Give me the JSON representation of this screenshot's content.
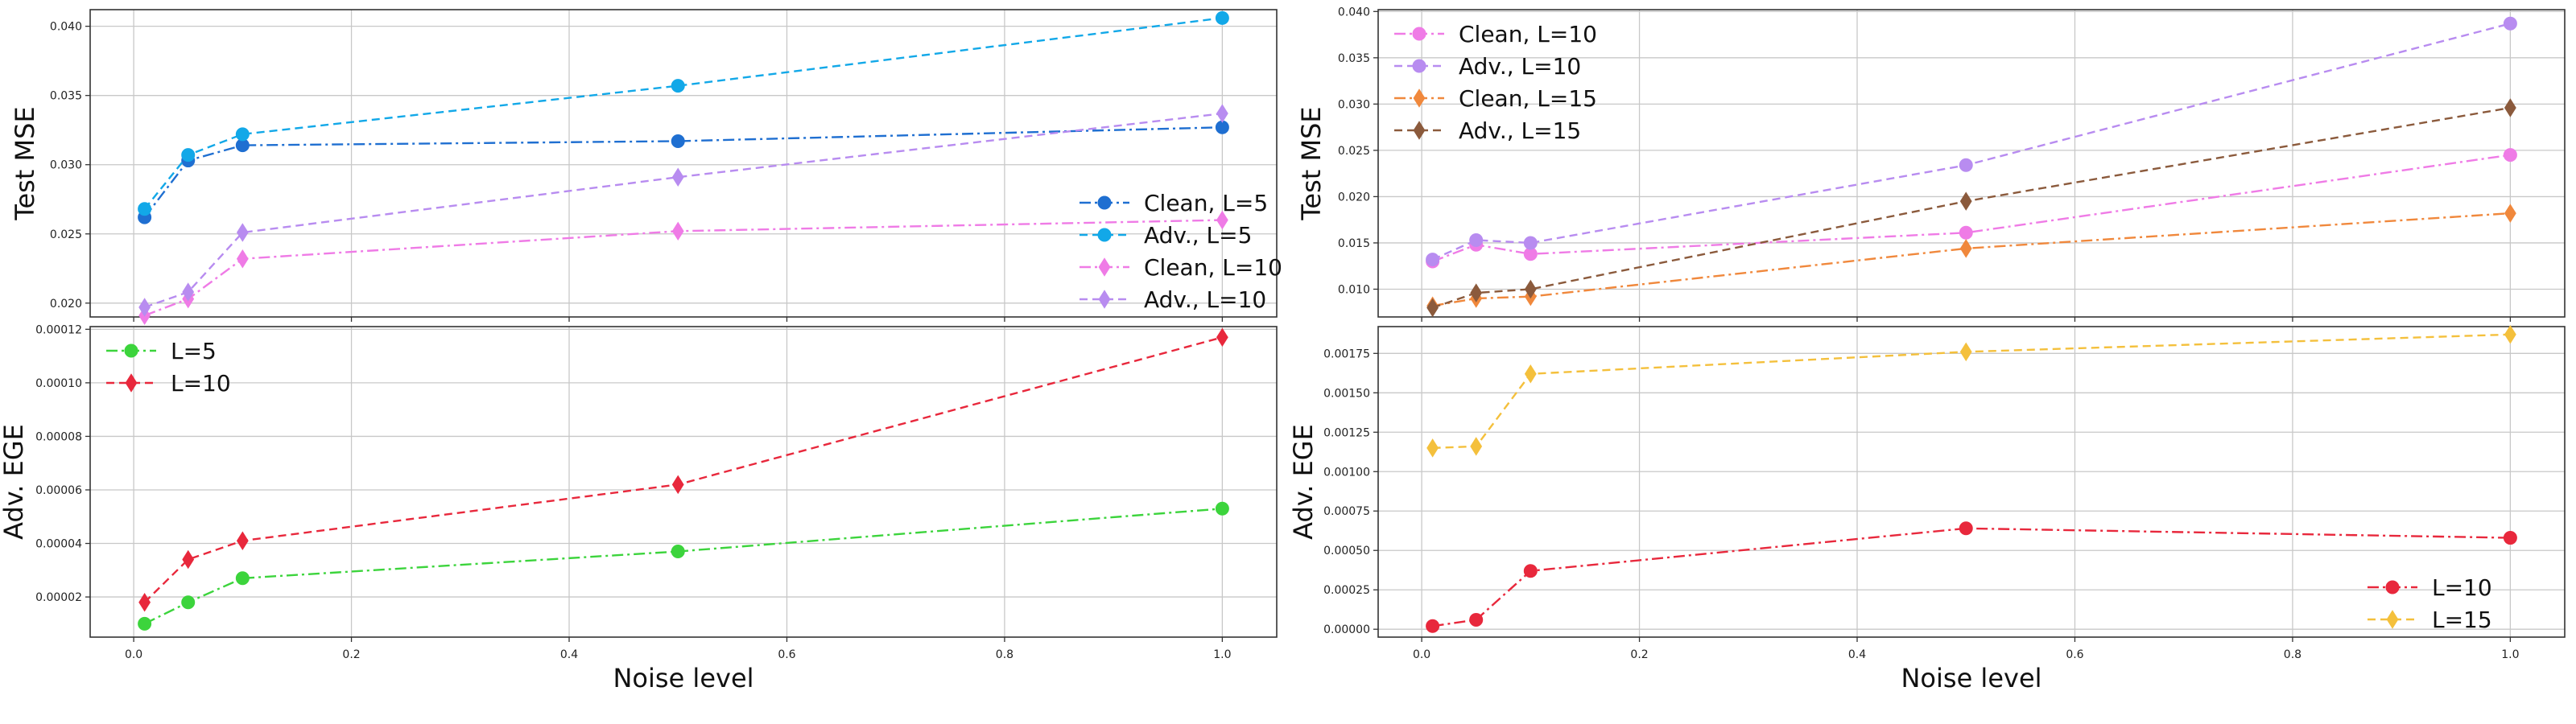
{
  "chart_data": [
    {
      "type": "line",
      "panel": "top-left",
      "ylabel": "Test MSE",
      "xlabel": "",
      "xlim": [
        -0.04,
        1.05
      ],
      "ylim": [
        0.019,
        0.0412
      ],
      "xticks": [],
      "yticks": [
        0.02,
        0.025,
        0.03,
        0.035,
        0.04
      ],
      "ytick_labels": [
        "0.020",
        "0.025",
        "0.030",
        "0.035",
        "0.040"
      ],
      "grid": true,
      "legend_position": "lower-right",
      "x": [
        0.01,
        0.05,
        0.1,
        0.5,
        1.0
      ],
      "series": [
        {
          "name": "Clean, L=5",
          "color": "#1f6fd1",
          "marker": "circle",
          "dash": "dashdot",
          "values": [
            0.0262,
            0.0303,
            0.0314,
            0.0317,
            0.0327
          ]
        },
        {
          "name": "Adv., L=5",
          "color": "#12a8e8",
          "marker": "circle",
          "dash": "dashed",
          "values": [
            0.0268,
            0.0307,
            0.0322,
            0.0357,
            0.0406
          ]
        },
        {
          "name": "Clean, L=10",
          "color": "#ef7be6",
          "marker": "diamond",
          "dash": "dashdot",
          "values": [
            0.0191,
            0.0203,
            0.0232,
            0.0252,
            0.026
          ]
        },
        {
          "name": "Adv., L=10",
          "color": "#b88cf0",
          "marker": "diamond",
          "dash": "dashed",
          "values": [
            0.0197,
            0.0208,
            0.0251,
            0.0291,
            0.0337
          ]
        }
      ]
    },
    {
      "type": "line",
      "panel": "bottom-left",
      "ylabel": "Adv. EGE",
      "xlabel": "Noise level",
      "xlim": [
        -0.04,
        1.05
      ],
      "ylim": [
        5e-06,
        0.000121
      ],
      "xticks": [
        0.0,
        0.2,
        0.4,
        0.6,
        0.8,
        1.0
      ],
      "xtick_labels": [
        "0.0",
        "0.2",
        "0.4",
        "0.6",
        "0.8",
        "1.0"
      ],
      "yticks": [
        2e-05,
        4e-05,
        6e-05,
        8e-05,
        0.0001,
        0.00012
      ],
      "ytick_labels": [
        "0.00002",
        "0.00004",
        "0.00006",
        "0.00008",
        "0.00010",
        "0.00012"
      ],
      "grid": true,
      "legend_position": "upper-left",
      "x": [
        0.01,
        0.05,
        0.1,
        0.5,
        1.0
      ],
      "series": [
        {
          "name": "L=5",
          "color": "#3cd43c",
          "marker": "circle",
          "dash": "dashdot",
          "values": [
            1e-05,
            1.8e-05,
            2.7e-05,
            3.7e-05,
            5.3e-05
          ]
        },
        {
          "name": "L=10",
          "color": "#e8283c",
          "marker": "diamond",
          "dash": "dashed",
          "values": [
            1.8e-05,
            3.4e-05,
            4.1e-05,
            6.2e-05,
            0.000117
          ]
        }
      ]
    },
    {
      "type": "line",
      "panel": "top-right",
      "ylabel": "Test MSE",
      "xlabel": "",
      "xlim": [
        -0.04,
        1.05
      ],
      "ylim": [
        0.007,
        0.0402
      ],
      "xticks": [],
      "yticks": [
        0.01,
        0.015,
        0.02,
        0.025,
        0.03,
        0.035,
        0.04
      ],
      "ytick_labels": [
        "0.010",
        "0.015",
        "0.020",
        "0.025",
        "0.030",
        "0.035",
        "0.040"
      ],
      "grid": true,
      "legend_position": "upper-left",
      "x": [
        0.01,
        0.05,
        0.1,
        0.5,
        1.0
      ],
      "series": [
        {
          "name": "Clean, L=10",
          "color": "#ef7be6",
          "marker": "circle",
          "dash": "dashdot",
          "values": [
            0.013,
            0.0148,
            0.0138,
            0.0161,
            0.0245
          ]
        },
        {
          "name": "Adv., L=10",
          "color": "#b88cf0",
          "marker": "circle",
          "dash": "dashed",
          "values": [
            0.0132,
            0.0153,
            0.015,
            0.0234,
            0.0387
          ]
        },
        {
          "name": "Clean, L=15",
          "color": "#f0883c",
          "marker": "diamond",
          "dash": "dashdot",
          "values": [
            0.0082,
            0.009,
            0.0092,
            0.0144,
            0.0182
          ]
        },
        {
          "name": "Adv., L=15",
          "color": "#8b5a3c",
          "marker": "diamond",
          "dash": "dashed",
          "values": [
            0.008,
            0.0096,
            0.01,
            0.0195,
            0.0296
          ]
        }
      ]
    },
    {
      "type": "line",
      "panel": "bottom-right",
      "ylabel": "Adv. EGE",
      "xlabel": "Noise level",
      "xlim": [
        -0.04,
        1.05
      ],
      "ylim": [
        -5e-05,
        0.00192
      ],
      "xticks": [
        0.0,
        0.2,
        0.4,
        0.6,
        0.8,
        1.0
      ],
      "xtick_labels": [
        "0.0",
        "0.2",
        "0.4",
        "0.6",
        "0.8",
        "1.0"
      ],
      "yticks": [
        0.0,
        0.00025,
        0.0005,
        0.00075,
        0.001,
        0.00125,
        0.0015,
        0.00175
      ],
      "ytick_labels": [
        "0.00000",
        "0.00025",
        "0.00050",
        "0.00075",
        "0.00100",
        "0.00125",
        "0.00150",
        "0.00175"
      ],
      "grid": true,
      "legend_position": "lower-right",
      "x": [
        0.01,
        0.05,
        0.1,
        0.5,
        1.0
      ],
      "series": [
        {
          "name": "L=10",
          "color": "#e8283c",
          "marker": "circle",
          "dash": "dashdot",
          "values": [
            2e-05,
            6e-05,
            0.00037,
            0.00064,
            0.00058
          ]
        },
        {
          "name": "L=15",
          "color": "#f4c03c",
          "marker": "diamond",
          "dash": "dashed",
          "values": [
            0.00115,
            0.00116,
            0.00162,
            0.00176,
            0.00187
          ]
        }
      ]
    }
  ]
}
